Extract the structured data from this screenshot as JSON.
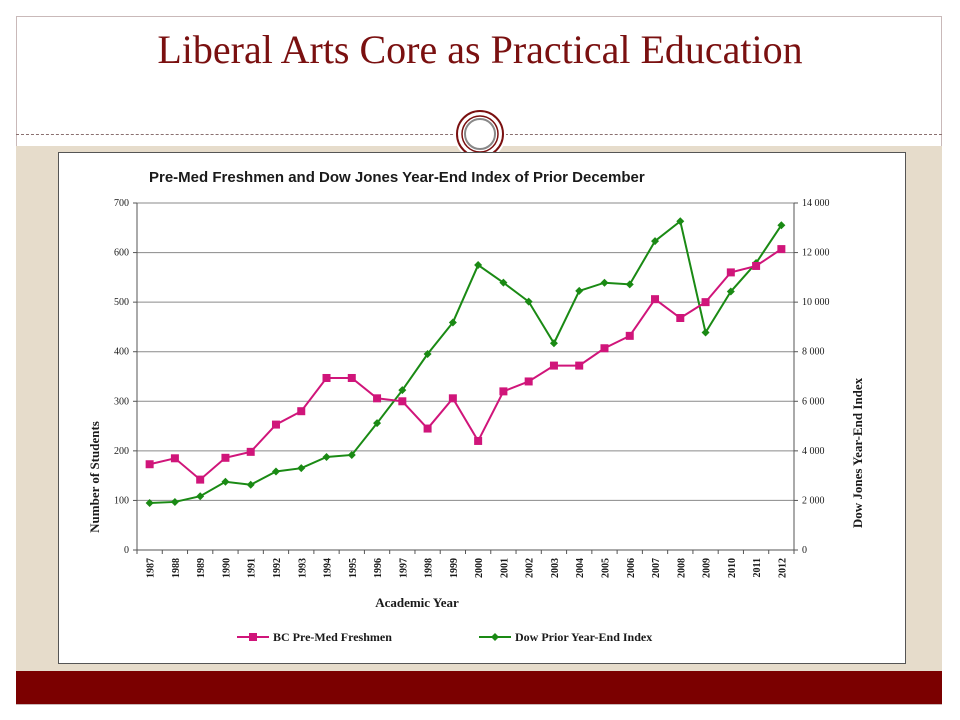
{
  "slide": {
    "title": "Liberal Arts Core as Practical Education"
  },
  "colors": {
    "title": "#7a1010",
    "band_beige": "#e6dccb",
    "band_red": "#7b0000",
    "series_students": "#d0157a",
    "series_dow": "#1a8a14"
  },
  "chart_data": {
    "type": "line",
    "title": "Pre-Med Freshmen and Dow Jones Year-End Index of Prior December",
    "xlabel": "Academic Year",
    "ylabel": "Number of Students",
    "y2label": "Dow Jones Year-End Index",
    "ylim": [
      0,
      700
    ],
    "y2lim": [
      0,
      14000
    ],
    "yticks": [
      "0",
      "100",
      "200",
      "300",
      "400",
      "500",
      "600",
      "700"
    ],
    "y2ticks": [
      "0",
      "2 000",
      "4 000",
      "6 000",
      "8 000",
      "10 000",
      "12 000",
      "14 000"
    ],
    "grid": "horizontal",
    "legend_position": "bottom",
    "categories": [
      "1987",
      "1988",
      "1989",
      "1990",
      "1991",
      "1992",
      "1993",
      "1994",
      "1995",
      "1996",
      "1997",
      "1998",
      "1999",
      "2000",
      "2001",
      "2002",
      "2003",
      "2004",
      "2005",
      "2006",
      "2007",
      "2008",
      "2009",
      "2010",
      "2011",
      "2012"
    ],
    "series": [
      {
        "name": "BC Pre-Med Freshmen",
        "axis": "left",
        "marker": "square",
        "values": [
          173,
          185,
          142,
          186,
          198,
          253,
          280,
          347,
          347,
          306,
          300,
          245,
          306,
          220,
          320,
          340,
          372,
          372,
          407,
          432,
          506,
          468,
          500,
          560,
          573,
          607
        ]
      },
      {
        "name": "Dow Prior Year-End Index",
        "axis": "right",
        "marker": "diamond",
        "values": [
          1896,
          1939,
          2169,
          2753,
          2634,
          3169,
          3301,
          3754,
          3834,
          5117,
          6448,
          7908,
          9181,
          11497,
          10787,
          10021,
          8342,
          10454,
          10783,
          10718,
          12463,
          13265,
          8776,
          10428,
          11578,
          13104
        ]
      }
    ]
  }
}
